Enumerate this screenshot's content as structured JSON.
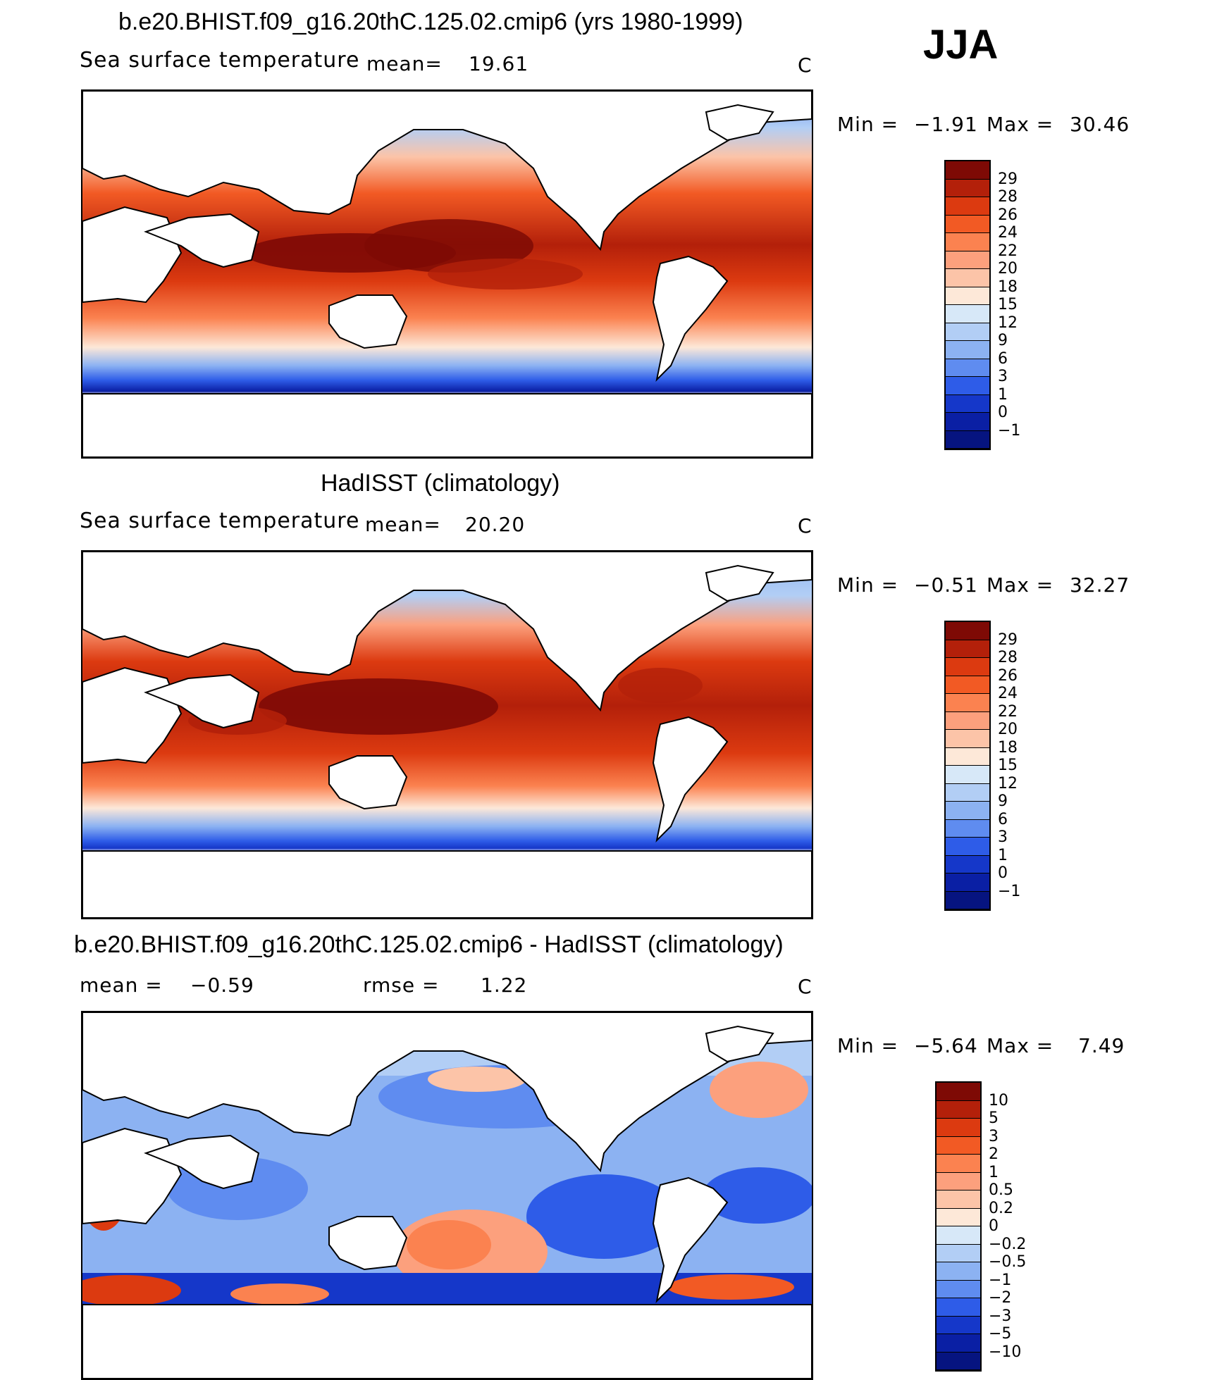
{
  "season": "JJA",
  "panels": [
    {
      "id": "model",
      "title": "b.e20.BHIST.f09_g16.20thC.125.02.cmip6 (yrs 1980-1999)",
      "variable": "Sea surface temperature",
      "mean_label": "mean=",
      "mean": "19.61",
      "unit": "C",
      "min_label": "Min =",
      "min": "−1.91",
      "max_label": "Max =",
      "max": "30.46",
      "colorbar": {
        "labels": [
          "29",
          "28",
          "26",
          "24",
          "22",
          "20",
          "18",
          "15",
          "12",
          "9",
          "6",
          "3",
          "1",
          "0",
          "−1"
        ],
        "colors": [
          "#7e0a05",
          "#b3200a",
          "#dc3a10",
          "#f25a24",
          "#fb8250",
          "#fca07d",
          "#fcc4a8",
          "#fde8d8",
          "#d7e8f8",
          "#b2cef5",
          "#8cb2f2",
          "#5f8cf0",
          "#2e5ce8",
          "#1537c9",
          "#0a1fa4",
          "#061480"
        ]
      }
    },
    {
      "id": "obs",
      "title": "HadISST (climatology)",
      "variable": "Sea surface temperature",
      "mean_label": "mean=",
      "mean": "20.20",
      "unit": "C",
      "min_label": "Min =",
      "min": "−0.51",
      "max_label": "Max =",
      "max": "32.27",
      "colorbar": {
        "labels": [
          "29",
          "28",
          "26",
          "24",
          "22",
          "20",
          "18",
          "15",
          "12",
          "9",
          "6",
          "3",
          "1",
          "0",
          "−1"
        ],
        "colors": [
          "#7e0a05",
          "#b3200a",
          "#dc3a10",
          "#f25a24",
          "#fb8250",
          "#fca07d",
          "#fcc4a8",
          "#fde8d8",
          "#d7e8f8",
          "#b2cef5",
          "#8cb2f2",
          "#5f8cf0",
          "#2e5ce8",
          "#1537c9",
          "#0a1fa4",
          "#061480"
        ]
      }
    },
    {
      "id": "diff",
      "title": "b.e20.BHIST.f09_g16.20thC.125.02.cmip6 - HadISST (climatology)",
      "mean_label": "mean =",
      "mean": "−0.59",
      "rmse_label": "rmse =",
      "rmse": "1.22",
      "unit": "C",
      "min_label": "Min =",
      "min": "−5.64",
      "max_label": "Max =",
      "max": "7.49",
      "colorbar": {
        "labels": [
          "10",
          "5",
          "3",
          "2",
          "1",
          "0.5",
          "0.2",
          "0",
          "−0.2",
          "−0.5",
          "−1",
          "−2",
          "−3",
          "−5",
          "−10"
        ],
        "colors": [
          "#7e0a05",
          "#b3200a",
          "#dc3a10",
          "#f25a24",
          "#fb8250",
          "#fca07d",
          "#fcc4a8",
          "#fde8d8",
          "#d7e8f8",
          "#b2cef5",
          "#8cb2f2",
          "#5f8cf0",
          "#2e5ce8",
          "#1537c9",
          "#0a1fa4",
          "#061480"
        ]
      }
    }
  ]
}
